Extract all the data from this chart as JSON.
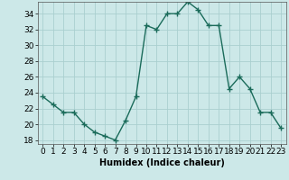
{
  "x": [
    0,
    1,
    2,
    3,
    4,
    5,
    6,
    7,
    8,
    9,
    10,
    11,
    12,
    13,
    14,
    15,
    16,
    17,
    18,
    19,
    20,
    21,
    22,
    23
  ],
  "y": [
    23.5,
    22.5,
    21.5,
    21.5,
    20.0,
    19.0,
    18.5,
    18.0,
    20.5,
    23.5,
    32.5,
    32.0,
    34.0,
    34.0,
    35.5,
    34.5,
    32.5,
    32.5,
    24.5,
    26.0,
    24.5,
    21.5,
    21.5,
    19.5
  ],
  "line_color": "#1a6b5a",
  "marker": "+",
  "marker_size": 4,
  "bg_color": "#cce8e8",
  "grid_color": "#aacfcf",
  "xlabel": "Humidex (Indice chaleur)",
  "xlim": [
    -0.5,
    23.5
  ],
  "ylim": [
    17.5,
    35.5
  ],
  "yticks": [
    18,
    20,
    22,
    24,
    26,
    28,
    30,
    32,
    34
  ],
  "xticks": [
    0,
    1,
    2,
    3,
    4,
    5,
    6,
    7,
    8,
    9,
    10,
    11,
    12,
    13,
    14,
    15,
    16,
    17,
    18,
    19,
    20,
    21,
    22,
    23
  ],
  "xlabel_fontsize": 7,
  "tick_fontsize": 6.5,
  "line_width": 1.0
}
